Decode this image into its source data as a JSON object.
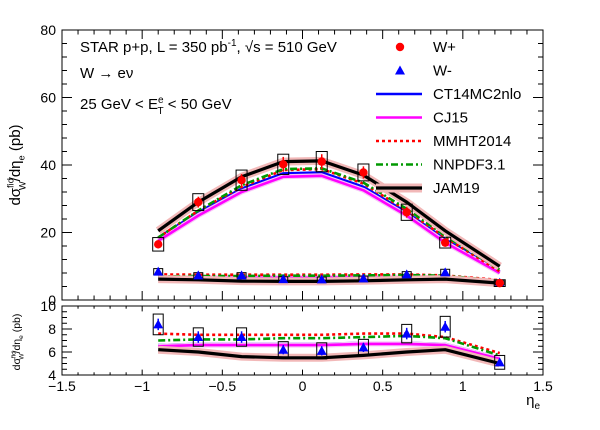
{
  "chart_data": {
    "type": "line",
    "x": [
      -0.9,
      -0.65,
      -0.38,
      -0.12,
      0.12,
      0.38,
      0.65,
      0.89,
      1.23
    ],
    "xlabel": "η",
    "xlabel_sub": "e",
    "xlim": [
      -1.5,
      1.5
    ],
    "xticks": [
      "−1.5",
      "−1",
      "−0.5",
      "0",
      "0.5",
      "1",
      "1.5"
    ],
    "top_panel": {
      "ylabel": "dσ",
      "ylabel_sup": "fid",
      "ylabel_sub": "W",
      "ylabel_rest": "/dη",
      "ylabel_sub2": "e",
      "ylabel_unit": " (pb)",
      "ylim": [
        0,
        80
      ],
      "yticks": [
        "0",
        "20",
        "40",
        "60",
        "80"
      ],
      "annotations": {
        "line1": "STAR p+p, L = 350 pb",
        "line1_sup": "-1",
        "line1_mid": ", ",
        "line1_sqrt": "√s",
        "line1_end": " = 510 GeV",
        "line2": "W → eν",
        "line3_a": "25 GeV < E",
        "line3_sup": "e",
        "line3_sub": "T",
        "line3_b": " < 50 GeV"
      },
      "data_series": [
        {
          "name": "W+",
          "color": "#ff0000",
          "marker": "circle",
          "values": [
            16.5,
            29.0,
            35.5,
            40.2,
            41.0,
            37.8,
            26.0,
            17.0,
            5.0
          ],
          "errors": [
            1.2,
            1.6,
            1.8,
            2.2,
            2.2,
            1.8,
            1.6,
            1.2,
            0.5
          ],
          "sys": [
            2.0,
            2.5,
            3.0,
            3.0,
            3.0,
            2.5,
            2.4,
            1.6,
            1.0
          ]
        },
        {
          "name": "W-",
          "color": "#0000ff",
          "marker": "triangle",
          "values": [
            8.4,
            7.3,
            7.3,
            6.2,
            6.1,
            6.4,
            7.6,
            8.2,
            5.1
          ],
          "errors": [
            0.5,
            0.5,
            0.5,
            0.4,
            0.4,
            0.4,
            0.5,
            0.5,
            0.3
          ],
          "sys": [
            0.9,
            0.8,
            0.8,
            0.7,
            0.7,
            0.7,
            0.8,
            0.9,
            0.6
          ]
        }
      ],
      "theory_plus": [
        {
          "name": "CT14MC2nlo",
          "color": "#0000ff",
          "dash": "",
          "values": [
            18.5,
            26.0,
            33.0,
            37.5,
            37.8,
            33.5,
            26.0,
            18.0,
            8.5
          ]
        },
        {
          "name": "CJ15",
          "color": "#ff00ff",
          "dash": "",
          "values": [
            17.5,
            25.0,
            32.0,
            36.5,
            36.8,
            32.5,
            25.0,
            17.0,
            8.0
          ]
        },
        {
          "name": "MMHT2014",
          "color": "#ff0000",
          "dash": "3,3",
          "values": [
            18.5,
            26.5,
            33.5,
            38.5,
            38.8,
            34.5,
            26.5,
            18.5,
            8.5
          ]
        },
        {
          "name": "NNPDF3.1",
          "color": "#009900",
          "dash": "7,3,2,3",
          "values": [
            18.5,
            26.5,
            34.0,
            38.8,
            39.0,
            34.8,
            27.0,
            19.0,
            9.0
          ]
        },
        {
          "name": "JAM19",
          "color": "#000000",
          "dash": "",
          "values": [
            20.5,
            29.0,
            36.5,
            41.0,
            41.2,
            37.0,
            29.0,
            20.5,
            10.0
          ]
        }
      ],
      "theory_minus": [
        {
          "name": "CT14MC2nlo",
          "color": "#0000ff",
          "dash": "",
          "values": [
            6.6,
            6.7,
            6.7,
            6.7,
            6.7,
            6.8,
            6.8,
            6.7,
            5.5
          ]
        },
        {
          "name": "CJ15",
          "color": "#ff00ff",
          "dash": "",
          "values": [
            6.5,
            6.6,
            6.6,
            6.6,
            6.6,
            6.7,
            6.7,
            6.6,
            5.4
          ]
        },
        {
          "name": "MMHT2014",
          "color": "#ff0000",
          "dash": "3,3",
          "values": [
            7.6,
            7.5,
            7.5,
            7.5,
            7.5,
            7.6,
            7.6,
            7.3,
            5.9
          ]
        },
        {
          "name": "NNPDF3.1",
          "color": "#009900",
          "dash": "7,3,2,3",
          "values": [
            7.0,
            7.1,
            7.1,
            7.2,
            7.2,
            7.3,
            7.4,
            7.2,
            5.7
          ]
        },
        {
          "name": "JAM19",
          "color": "#000000",
          "dash": "",
          "values": [
            6.2,
            6.0,
            5.6,
            5.5,
            5.5,
            5.7,
            6.0,
            6.2,
            5.0
          ]
        }
      ]
    },
    "bottom_panel": {
      "ylabel": "dσ",
      "ylabel_sup": "fid",
      "ylabel_sub": "W",
      "ylabel_rest": "/dη",
      "ylabel_sub2": "e",
      "ylabel_unit": " (pb)",
      "ylim": [
        4,
        10
      ],
      "yticks": [
        "4",
        "6",
        "8",
        "10"
      ],
      "data": {
        "name": "W-",
        "color": "#0000ff",
        "values": [
          8.4,
          7.3,
          7.3,
          6.2,
          6.1,
          6.4,
          7.6,
          8.2,
          5.1
        ],
        "errors": [
          0.5,
          0.5,
          0.5,
          0.4,
          0.4,
          0.4,
          0.5,
          0.5,
          0.3
        ],
        "sys": [
          0.9,
          0.8,
          0.8,
          0.7,
          0.7,
          0.7,
          0.8,
          0.9,
          0.6
        ]
      }
    },
    "legend": {
      "placement": "top-right",
      "entries": [
        {
          "label": "W+",
          "type": "marker-circle",
          "color": "#ff0000"
        },
        {
          "label": "W-",
          "type": "marker-triangle",
          "color": "#0000ff"
        },
        {
          "label": "CT14MC2nlo",
          "type": "line",
          "color": "#0000ff",
          "dash": ""
        },
        {
          "label": "CJ15",
          "type": "line",
          "color": "#ff00ff",
          "dash": ""
        },
        {
          "label": "MMHT2014",
          "type": "line",
          "color": "#ff0000",
          "dash": "3,3"
        },
        {
          "label": "NNPDF3.1",
          "type": "line",
          "color": "#009900",
          "dash": "7,3,2,3"
        },
        {
          "label": "JAM19",
          "type": "line-band",
          "color": "#000000",
          "dash": ""
        }
      ]
    }
  }
}
